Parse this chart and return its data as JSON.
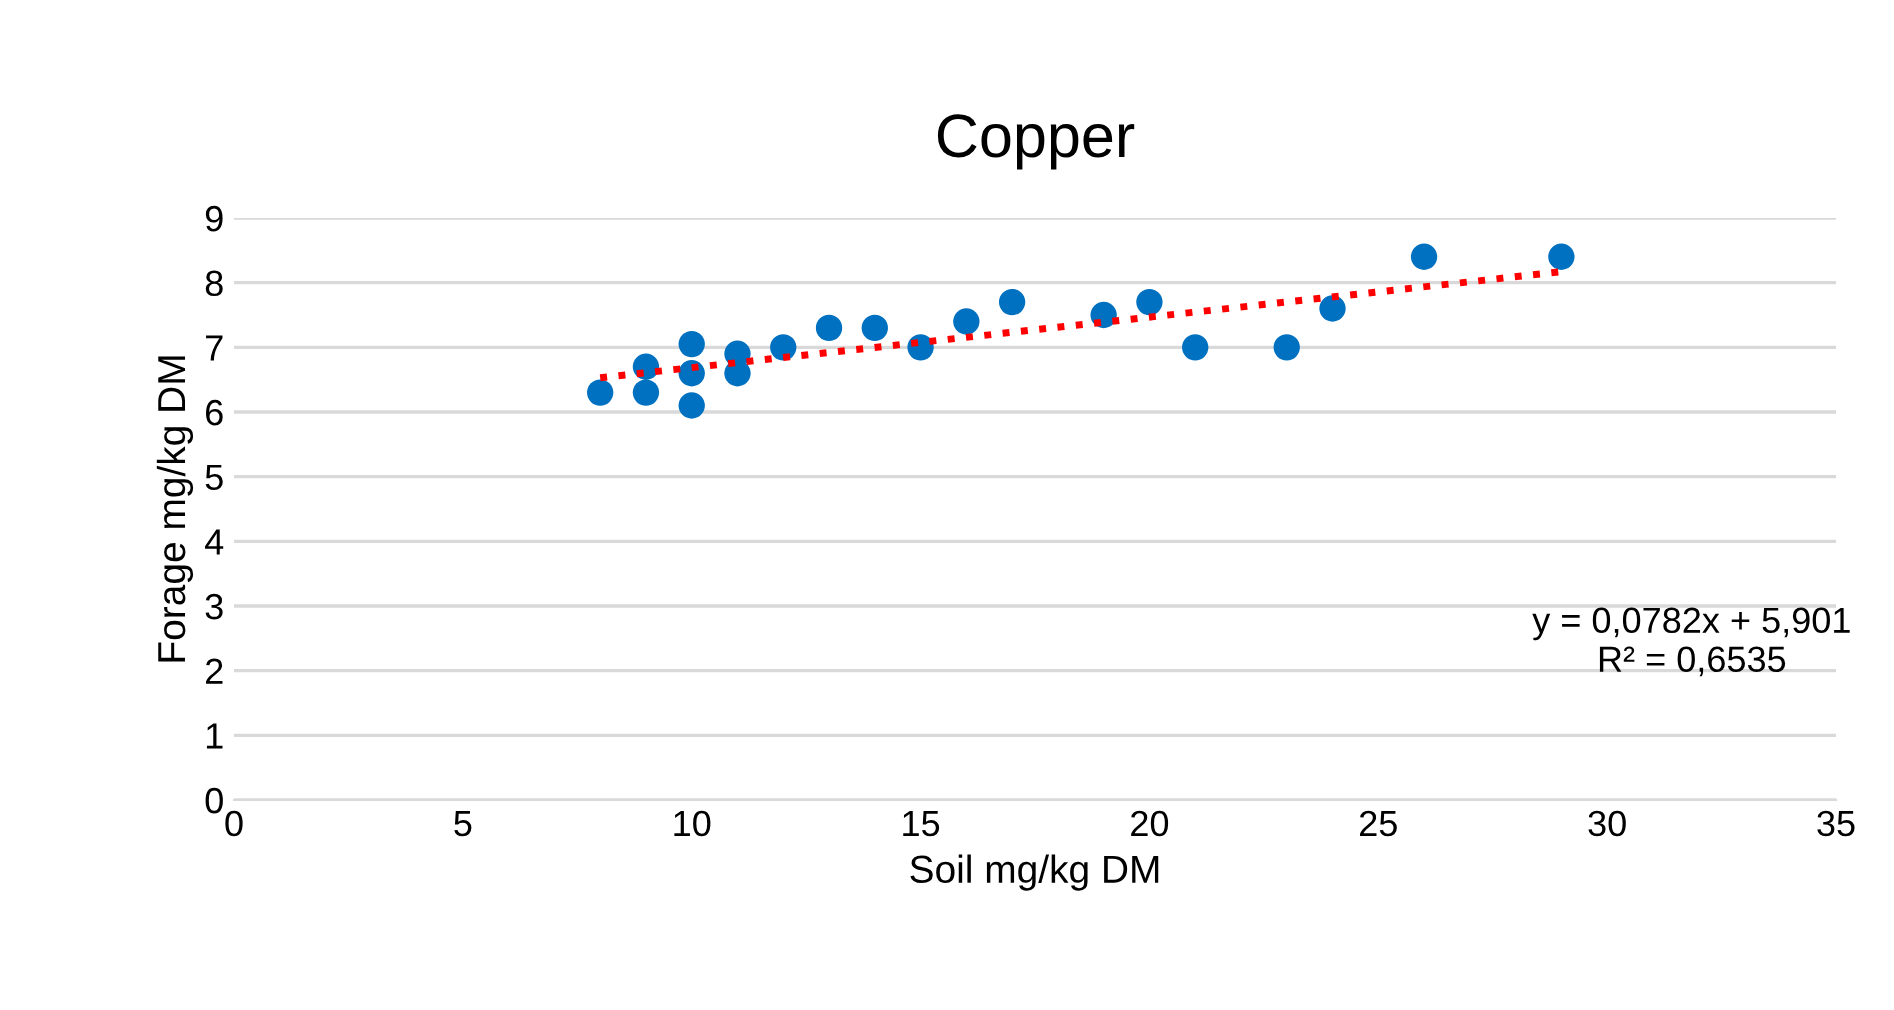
{
  "chart_data": {
    "type": "scatter",
    "title": "Copper",
    "xlabel": "Soil mg/kg DM",
    "ylabel": "Forage mg/kg DM",
    "xlim": [
      0,
      35
    ],
    "xticks": [
      0,
      5,
      10,
      15,
      20,
      25,
      30,
      35
    ],
    "ylim": [
      0,
      9
    ],
    "yticks": [
      0,
      1,
      2,
      3,
      4,
      5,
      6,
      7,
      8,
      9
    ],
    "grid": "y",
    "legend": false,
    "series": [
      {
        "marker": "circle",
        "color": "#0070c0",
        "x": [
          8,
          9,
          9,
          10,
          10,
          10,
          11,
          11,
          12,
          13,
          14,
          15,
          16,
          17,
          19,
          20,
          21,
          23,
          24,
          26,
          29
        ],
        "values": [
          6.3,
          6.7,
          6.3,
          7.05,
          6.6,
          6.1,
          6.9,
          6.6,
          7.0,
          7.3,
          7.3,
          7.0,
          7.4,
          7.7,
          7.5,
          7.7,
          7.0,
          7.0,
          7.6,
          8.4,
          8.4
        ]
      },
      {
        "type": "line",
        "marker": "none",
        "color": "#ff0000",
        "line_style": "dotted",
        "x": [
          8,
          29
        ],
        "values": [
          6.53,
          8.17
        ]
      }
    ],
    "annotations": [
      "y = 0,0782x + 5,901\nR² = 0,6535"
    ]
  }
}
